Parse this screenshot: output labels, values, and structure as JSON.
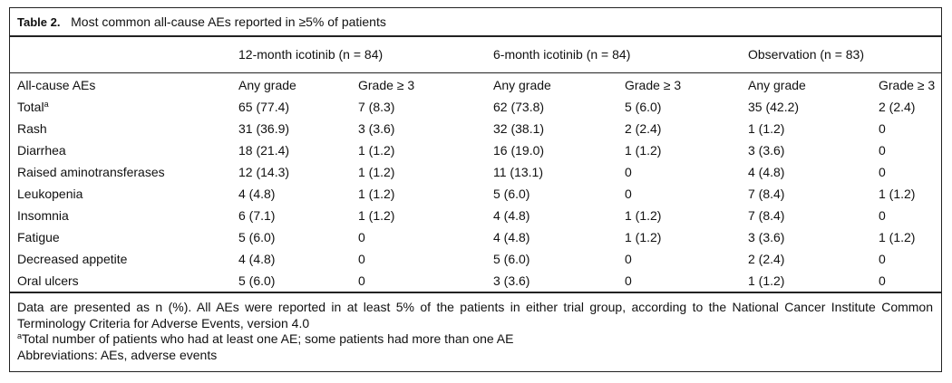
{
  "table": {
    "label": "Table 2.",
    "title": "Most common all-cause AEs reported in ≥5% of patients",
    "groups": [
      "12-month icotinib (n = 84)",
      "6-month icotinib (n = 84)",
      "Observation (n = 83)"
    ],
    "columns": [
      "All-cause AEs",
      "Any grade",
      "Grade ≥ 3",
      "Any grade",
      "Grade ≥ 3",
      "Any grade",
      "Grade ≥ 3"
    ],
    "rows": [
      {
        "label": "Total",
        "footnote": "a",
        "cells": [
          "65 (77.4)",
          "7 (8.3)",
          "62 (73.8)",
          "5 (6.0)",
          "35 (42.2)",
          "2 (2.4)"
        ]
      },
      {
        "label": "Rash",
        "cells": [
          "31 (36.9)",
          "3 (3.6)",
          "32 (38.1)",
          "2 (2.4)",
          "1 (1.2)",
          "0"
        ]
      },
      {
        "label": "Diarrhea",
        "cells": [
          "18 (21.4)",
          "1 (1.2)",
          "16 (19.0)",
          "1 (1.2)",
          "3 (3.6)",
          "0"
        ]
      },
      {
        "label": "Raised aminotransferases",
        "cells": [
          "12 (14.3)",
          "1 (1.2)",
          "11 (13.1)",
          "0",
          "4 (4.8)",
          "0"
        ]
      },
      {
        "label": "Leukopenia",
        "cells": [
          "4 (4.8)",
          "1 (1.2)",
          "5 (6.0)",
          "0",
          "7 (8.4)",
          "1 (1.2)"
        ]
      },
      {
        "label": "Insomnia",
        "cells": [
          "6 (7.1)",
          "1 (1.2)",
          "4 (4.8)",
          "1 (1.2)",
          "7 (8.4)",
          "0"
        ]
      },
      {
        "label": "Fatigue",
        "cells": [
          "5 (6.0)",
          "0",
          "4 (4.8)",
          "1 (1.2)",
          "3 (3.6)",
          "1 (1.2)"
        ]
      },
      {
        "label": "Decreased appetite",
        "cells": [
          "4 (4.8)",
          "0",
          "5 (6.0)",
          "0",
          "2 (2.4)",
          "0"
        ]
      },
      {
        "label": "Oral ulcers",
        "cells": [
          "5 (6.0)",
          "0",
          "3 (3.6)",
          "0",
          "1 (1.2)",
          "0"
        ]
      }
    ],
    "notes": [
      "Data are presented as n (%). All AEs were reported in at least 5% of the patients in either trial group, according to the National Cancer Institute Common Terminology Criteria for Adverse Events, version 4.0",
      {
        "marker": "a",
        "text": "Total number of patients who had at least one AE; some patients had more than one AE"
      },
      "Abbreviations: AEs, adverse events"
    ]
  }
}
